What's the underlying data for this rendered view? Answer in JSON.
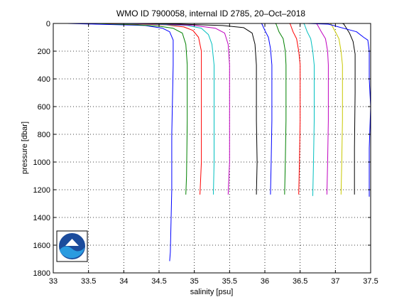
{
  "chart_data": {
    "type": "line",
    "title": "WMO ID 7900058, internal ID 2785, 20–Oct–2018",
    "xlabel": "salinity [psu]",
    "ylabel": "pressure [dbar]",
    "xlim": [
      33,
      37.5
    ],
    "ylim": [
      0,
      1800
    ],
    "y_reversed": true,
    "grid": true,
    "xticks": [
      33,
      33.5,
      34,
      34.5,
      35,
      35.5,
      36,
      36.5,
      37,
      37.5
    ],
    "xtick_labels": [
      "33",
      "33.5",
      "34",
      "34.5",
      "35",
      "35.5",
      "36",
      "36.5",
      "37",
      "37.5"
    ],
    "yticks": [
      0,
      200,
      400,
      600,
      800,
      1000,
      1200,
      1400,
      1600,
      1800
    ],
    "ytick_labels": [
      "0",
      "200",
      "400",
      "600",
      "800",
      "1000",
      "1200",
      "1400",
      "1600",
      "1800"
    ],
    "series": [
      {
        "color": "#0000ff",
        "points": [
          [
            33.2,
            0
          ],
          [
            33.6,
            5
          ],
          [
            34.0,
            10
          ],
          [
            34.3,
            15
          ],
          [
            34.55,
            35
          ],
          [
            34.65,
            60
          ],
          [
            34.7,
            120
          ],
          [
            34.7,
            300
          ],
          [
            34.68,
            800
          ],
          [
            34.68,
            1200
          ],
          [
            34.66,
            1650
          ],
          [
            34.65,
            1715
          ]
        ]
      },
      {
        "color": "#008000",
        "points": [
          [
            33.6,
            0
          ],
          [
            33.9,
            5
          ],
          [
            34.2,
            10
          ],
          [
            34.5,
            20
          ],
          [
            34.7,
            35
          ],
          [
            34.83,
            70
          ],
          [
            34.88,
            150
          ],
          [
            34.9,
            300
          ],
          [
            34.9,
            700
          ],
          [
            34.89,
            1100
          ],
          [
            34.88,
            1235
          ]
        ]
      },
      {
        "color": "#ff0000",
        "points": [
          [
            33.7,
            0
          ],
          [
            34.2,
            5
          ],
          [
            34.6,
            10
          ],
          [
            34.85,
            25
          ],
          [
            34.98,
            50
          ],
          [
            35.06,
            100
          ],
          [
            35.1,
            200
          ],
          [
            35.1,
            600
          ],
          [
            35.1,
            1000
          ],
          [
            35.08,
            1235
          ]
        ]
      },
      {
        "color": "#00bfbf",
        "points": [
          [
            33.8,
            0
          ],
          [
            34.4,
            5
          ],
          [
            34.9,
            15
          ],
          [
            35.1,
            35
          ],
          [
            35.2,
            80
          ],
          [
            35.25,
            150
          ],
          [
            35.28,
            300
          ],
          [
            35.28,
            700
          ],
          [
            35.28,
            1000
          ],
          [
            35.27,
            1235
          ]
        ]
      },
      {
        "color": "#bf00bf",
        "points": [
          [
            34.0,
            0
          ],
          [
            34.6,
            5
          ],
          [
            35.0,
            15
          ],
          [
            35.3,
            35
          ],
          [
            35.43,
            70
          ],
          [
            35.48,
            150
          ],
          [
            35.5,
            300
          ],
          [
            35.5,
            700
          ],
          [
            35.5,
            1000
          ],
          [
            35.48,
            1235
          ]
        ]
      },
      {
        "color": "#000000",
        "points": [
          [
            34.2,
            0
          ],
          [
            34.8,
            5
          ],
          [
            35.4,
            15
          ],
          [
            35.7,
            30
          ],
          [
            35.82,
            70
          ],
          [
            35.86,
            150
          ],
          [
            35.88,
            300
          ],
          [
            35.88,
            700
          ],
          [
            35.89,
            1000
          ],
          [
            35.88,
            1235
          ]
        ]
      },
      {
        "color": "#0000ff",
        "points": [
          [
            35.95,
            0
          ],
          [
            35.96,
            5
          ],
          [
            36.0,
            50
          ],
          [
            36.05,
            100
          ],
          [
            36.08,
            180
          ],
          [
            36.1,
            300
          ],
          [
            36.1,
            700
          ],
          [
            36.09,
            1000
          ],
          [
            36.08,
            1235
          ]
        ]
      },
      {
        "color": "#008000",
        "points": [
          [
            36.15,
            0
          ],
          [
            36.16,
            5
          ],
          [
            36.2,
            60
          ],
          [
            36.26,
            110
          ],
          [
            36.29,
            200
          ],
          [
            36.3,
            300
          ],
          [
            36.3,
            700
          ],
          [
            36.29,
            1000
          ],
          [
            36.28,
            1235
          ]
        ]
      },
      {
        "color": "#ff0000",
        "points": [
          [
            36.35,
            0
          ],
          [
            36.36,
            5
          ],
          [
            36.4,
            60
          ],
          [
            36.45,
            110
          ],
          [
            36.48,
            200
          ],
          [
            36.5,
            300
          ],
          [
            36.5,
            700
          ],
          [
            36.49,
            1000
          ],
          [
            36.48,
            1235
          ]
        ]
      },
      {
        "color": "#00bfbf",
        "points": [
          [
            36.55,
            0
          ],
          [
            36.56,
            5
          ],
          [
            36.6,
            60
          ],
          [
            36.65,
            110
          ],
          [
            36.68,
            200
          ],
          [
            36.7,
            300
          ],
          [
            36.7,
            700
          ],
          [
            36.69,
            1000
          ],
          [
            36.68,
            1245
          ]
        ]
      },
      {
        "color": "#bf00bf",
        "points": [
          [
            36.72,
            0
          ],
          [
            36.74,
            5
          ],
          [
            36.8,
            60
          ],
          [
            36.86,
            110
          ],
          [
            36.89,
            200
          ],
          [
            36.9,
            300
          ],
          [
            36.9,
            700
          ],
          [
            36.89,
            1000
          ],
          [
            36.88,
            1235
          ]
        ]
      },
      {
        "color": "#c8c800",
        "points": [
          [
            36.92,
            0
          ],
          [
            36.94,
            5
          ],
          [
            37.0,
            60
          ],
          [
            37.05,
            110
          ],
          [
            37.08,
            200
          ],
          [
            37.1,
            300
          ],
          [
            37.1,
            700
          ],
          [
            37.09,
            1000
          ],
          [
            37.08,
            1235
          ]
        ]
      },
      {
        "color": "#000000",
        "points": [
          [
            37.1,
            0
          ],
          [
            37.12,
            5
          ],
          [
            37.2,
            70
          ],
          [
            37.25,
            130
          ],
          [
            37.28,
            220
          ],
          [
            37.28,
            500
          ],
          [
            37.27,
            900
          ],
          [
            37.27,
            1235
          ]
        ]
      },
      {
        "color": "#0000ff",
        "points": [
          [
            36.6,
            0
          ],
          [
            36.9,
            5
          ],
          [
            37.3,
            60
          ],
          [
            37.4,
            100
          ],
          [
            37.46,
            120
          ],
          [
            37.48,
            200
          ],
          [
            37.48,
            400
          ],
          [
            37.5,
            600
          ],
          [
            37.48,
            900
          ],
          [
            37.48,
            1250
          ]
        ]
      }
    ]
  }
}
